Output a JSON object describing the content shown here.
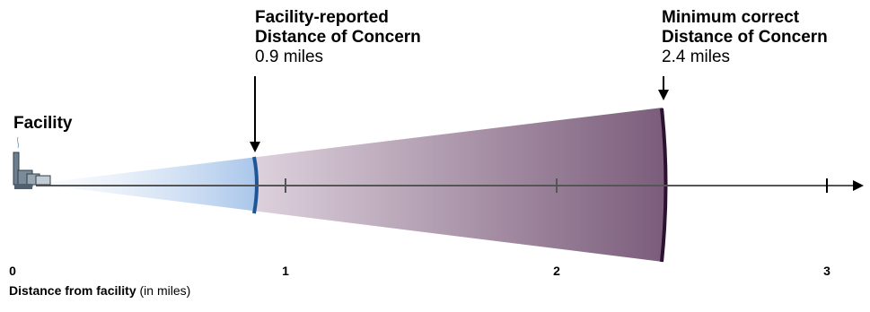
{
  "colors": {
    "reported_boundary": "#1f5597",
    "correct_boundary": "#2b1230",
    "reported_fill": "#a9c6ea",
    "correct_fill": "#7b5d7b",
    "axis": "#555555"
  },
  "facility": {
    "label": "Facility",
    "icon": "factory-icon"
  },
  "reported": {
    "title_line1": "Facility-reported",
    "title_line2": "Distance of Concern",
    "value_text": "0.9 miles",
    "miles": 0.9
  },
  "correct": {
    "title_line1": "Minimum correct",
    "title_line2": "Distance of Concern",
    "value_text": "2.4 miles",
    "miles": 2.4
  },
  "axis": {
    "ticks": [
      {
        "value": 0,
        "label": "0"
      },
      {
        "value": 1,
        "label": "1"
      },
      {
        "value": 2,
        "label": "2"
      },
      {
        "value": 3,
        "label": "3"
      }
    ],
    "caption_bold": "Distance from facility",
    "caption_rest": " (in miles)"
  }
}
